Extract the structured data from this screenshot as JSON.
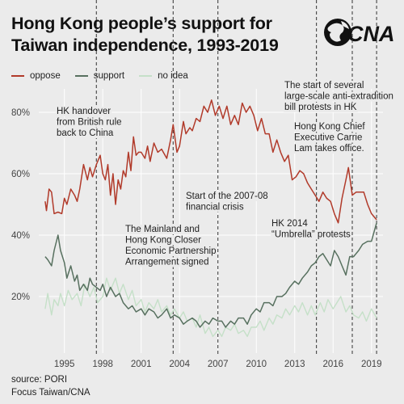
{
  "header": {
    "title_line1": "Hong Kong people’s support for",
    "title_line2": "Taiwan independence, 1993-2019",
    "logo_text": "CNA"
  },
  "footer": {
    "source": "source: PORI",
    "credit": "Focus Taiwan/CNA"
  },
  "colors": {
    "oppose": "#b13a2a",
    "support": "#57705f",
    "no_idea": "#c5e0c8",
    "background": "#ebebeb"
  },
  "chart_data": {
    "type": "line",
    "title": "Hong Kong people’s support for Taiwan independence, 1993-2019",
    "xlim": [
      1993.0,
      2019.9
    ],
    "ylim": [
      0,
      90
    ],
    "x_ticks": [
      1995,
      1998,
      2001,
      2004,
      2007,
      2010,
      2013,
      2016,
      2019
    ],
    "y_ticks": [
      20,
      40,
      60,
      80
    ],
    "y_tick_labels": [
      "20%",
      "40%",
      "60%",
      "80%"
    ],
    "legend_position": "top-left",
    "grid": true,
    "series": [
      {
        "name": "oppose",
        "color": "#b13a2a",
        "points": [
          [
            1993.5,
            51
          ],
          [
            1993.6,
            48
          ],
          [
            1993.8,
            55
          ],
          [
            1994.0,
            54
          ],
          [
            1994.2,
            47
          ],
          [
            1994.5,
            47.5
          ],
          [
            1994.8,
            47
          ],
          [
            1995.0,
            52
          ],
          [
            1995.2,
            50
          ],
          [
            1995.5,
            55
          ],
          [
            1995.8,
            53
          ],
          [
            1996.0,
            51
          ],
          [
            1996.2,
            55
          ],
          [
            1996.5,
            63
          ],
          [
            1996.8,
            58
          ],
          [
            1997.0,
            62
          ],
          [
            1997.2,
            59
          ],
          [
            1997.5,
            63
          ],
          [
            1997.8,
            66
          ],
          [
            1998.0,
            60
          ],
          [
            1998.2,
            58
          ],
          [
            1998.4,
            63
          ],
          [
            1998.6,
            53
          ],
          [
            1998.8,
            60
          ],
          [
            1999.0,
            50
          ],
          [
            1999.2,
            58
          ],
          [
            1999.4,
            55
          ],
          [
            1999.6,
            61
          ],
          [
            1999.8,
            59
          ],
          [
            2000.0,
            67
          ],
          [
            2000.2,
            61
          ],
          [
            2000.4,
            72
          ],
          [
            2000.6,
            66
          ],
          [
            2000.8,
            67
          ],
          [
            2001.0,
            67
          ],
          [
            2001.3,
            65
          ],
          [
            2001.5,
            69
          ],
          [
            2001.7,
            64
          ],
          [
            2002.0,
            70
          ],
          [
            2002.3,
            67
          ],
          [
            2002.6,
            68
          ],
          [
            2003.0,
            65
          ],
          [
            2003.3,
            71
          ],
          [
            2003.5,
            76
          ],
          [
            2003.8,
            67
          ],
          [
            2004.0,
            69
          ],
          [
            2004.3,
            77
          ],
          [
            2004.5,
            73
          ],
          [
            2004.8,
            75
          ],
          [
            2005.0,
            74
          ],
          [
            2005.3,
            78
          ],
          [
            2005.6,
            77
          ],
          [
            2005.9,
            82
          ],
          [
            2006.2,
            80
          ],
          [
            2006.5,
            84
          ],
          [
            2006.8,
            79
          ],
          [
            2007.1,
            82
          ],
          [
            2007.4,
            78
          ],
          [
            2007.7,
            82
          ],
          [
            2008.0,
            76
          ],
          [
            2008.3,
            79
          ],
          [
            2008.6,
            76
          ],
          [
            2008.9,
            83
          ],
          [
            2009.2,
            80
          ],
          [
            2009.5,
            82
          ],
          [
            2009.8,
            79
          ],
          [
            2010.1,
            74
          ],
          [
            2010.4,
            78
          ],
          [
            2010.7,
            73
          ],
          [
            2011.0,
            73
          ],
          [
            2011.3,
            67
          ],
          [
            2011.6,
            71
          ],
          [
            2011.9,
            67
          ],
          [
            2012.2,
            64
          ],
          [
            2012.5,
            66
          ],
          [
            2012.8,
            58
          ],
          [
            2013.1,
            59
          ],
          [
            2013.4,
            61
          ],
          [
            2013.7,
            60
          ],
          [
            2014.0,
            57
          ],
          [
            2014.3,
            55
          ],
          [
            2014.6,
            53
          ],
          [
            2014.9,
            51
          ],
          [
            2015.2,
            54
          ],
          [
            2015.5,
            52
          ],
          [
            2015.8,
            51
          ],
          [
            2016.1,
            47
          ],
          [
            2016.4,
            44
          ],
          [
            2016.7,
            52
          ],
          [
            2017.0,
            58
          ],
          [
            2017.2,
            62
          ],
          [
            2017.5,
            53
          ],
          [
            2017.8,
            54
          ],
          [
            2018.1,
            54
          ],
          [
            2018.4,
            54
          ],
          [
            2018.7,
            50
          ],
          [
            2019.0,
            47
          ],
          [
            2019.4,
            45
          ]
        ]
      },
      {
        "name": "support",
        "color": "#57705f",
        "points": [
          [
            1993.5,
            33
          ],
          [
            1993.7,
            32
          ],
          [
            1994.0,
            30
          ],
          [
            1994.2,
            35
          ],
          [
            1994.5,
            40
          ],
          [
            1994.7,
            35
          ],
          [
            1995.0,
            31
          ],
          [
            1995.2,
            26
          ],
          [
            1995.5,
            30
          ],
          [
            1995.8,
            25
          ],
          [
            1996.0,
            27
          ],
          [
            1996.2,
            22
          ],
          [
            1996.5,
            24
          ],
          [
            1996.8,
            22
          ],
          [
            1997.0,
            26
          ],
          [
            1997.2,
            24
          ],
          [
            1997.5,
            23
          ],
          [
            1997.8,
            22
          ],
          [
            1998.0,
            24
          ],
          [
            1998.3,
            20
          ],
          [
            1998.6,
            23
          ],
          [
            1999.0,
            20
          ],
          [
            1999.3,
            21
          ],
          [
            1999.6,
            18
          ],
          [
            2000.0,
            16
          ],
          [
            2000.3,
            17
          ],
          [
            2000.6,
            15
          ],
          [
            2001.0,
            16
          ],
          [
            2001.3,
            14
          ],
          [
            2001.6,
            16
          ],
          [
            2002.0,
            15
          ],
          [
            2002.3,
            13
          ],
          [
            2002.6,
            14
          ],
          [
            2003.0,
            16
          ],
          [
            2003.3,
            13
          ],
          [
            2003.6,
            14
          ],
          [
            2004.0,
            13
          ],
          [
            2004.3,
            11
          ],
          [
            2004.6,
            12
          ],
          [
            2005.0,
            13
          ],
          [
            2005.3,
            12
          ],
          [
            2005.6,
            10
          ],
          [
            2006.0,
            12
          ],
          [
            2006.3,
            11
          ],
          [
            2006.6,
            13
          ],
          [
            2007.0,
            12
          ],
          [
            2007.3,
            12
          ],
          [
            2007.6,
            10
          ],
          [
            2008.0,
            12
          ],
          [
            2008.3,
            11
          ],
          [
            2008.6,
            13
          ],
          [
            2009.0,
            13
          ],
          [
            2009.3,
            11
          ],
          [
            2009.6,
            14
          ],
          [
            2010.0,
            16
          ],
          [
            2010.3,
            15
          ],
          [
            2010.6,
            18
          ],
          [
            2011.0,
            18
          ],
          [
            2011.3,
            17
          ],
          [
            2011.6,
            20
          ],
          [
            2012.0,
            20
          ],
          [
            2012.3,
            21
          ],
          [
            2012.6,
            23
          ],
          [
            2013.0,
            25
          ],
          [
            2013.3,
            24
          ],
          [
            2013.6,
            26
          ],
          [
            2014.0,
            28
          ],
          [
            2014.3,
            30
          ],
          [
            2014.6,
            31
          ],
          [
            2014.9,
            33
          ],
          [
            2015.2,
            34
          ],
          [
            2015.5,
            32
          ],
          [
            2015.8,
            30
          ],
          [
            2016.1,
            35
          ],
          [
            2016.4,
            33
          ],
          [
            2016.7,
            30
          ],
          [
            2017.0,
            27
          ],
          [
            2017.3,
            33
          ],
          [
            2017.6,
            33
          ],
          [
            2018.0,
            35
          ],
          [
            2018.3,
            37
          ],
          [
            2018.7,
            38
          ],
          [
            2019.0,
            38
          ],
          [
            2019.4,
            44
          ]
        ]
      },
      {
        "name": "no idea",
        "color": "#c5e0c8",
        "points": [
          [
            1993.5,
            16
          ],
          [
            1993.7,
            21
          ],
          [
            1994.0,
            14
          ],
          [
            1994.2,
            19
          ],
          [
            1994.5,
            17
          ],
          [
            1994.7,
            21
          ],
          [
            1995.0,
            17
          ],
          [
            1995.3,
            22
          ],
          [
            1995.6,
            19
          ],
          [
            1996.0,
            21
          ],
          [
            1996.3,
            17
          ],
          [
            1996.6,
            24
          ],
          [
            1997.0,
            20
          ],
          [
            1997.3,
            23
          ],
          [
            1997.6,
            18
          ],
          [
            1998.0,
            20
          ],
          [
            1998.3,
            26
          ],
          [
            1998.6,
            22
          ],
          [
            1999.0,
            26
          ],
          [
            1999.3,
            21
          ],
          [
            1999.6,
            24
          ],
          [
            2000.0,
            19
          ],
          [
            2000.3,
            22
          ],
          [
            2000.6,
            17
          ],
          [
            2001.0,
            19
          ],
          [
            2001.3,
            15
          ],
          [
            2001.6,
            18
          ],
          [
            2002.0,
            16
          ],
          [
            2002.3,
            19
          ],
          [
            2002.6,
            15
          ],
          [
            2003.0,
            17
          ],
          [
            2003.3,
            14
          ],
          [
            2003.6,
            16
          ],
          [
            2004.0,
            13
          ],
          [
            2004.3,
            15
          ],
          [
            2004.6,
            12
          ],
          [
            2005.0,
            13
          ],
          [
            2005.3,
            10
          ],
          [
            2005.6,
            14
          ],
          [
            2006.0,
            8
          ],
          [
            2006.3,
            10
          ],
          [
            2006.6,
            7
          ],
          [
            2007.0,
            9
          ],
          [
            2007.3,
            7
          ],
          [
            2007.6,
            10
          ],
          [
            2008.0,
            9
          ],
          [
            2008.3,
            11
          ],
          [
            2008.6,
            8
          ],
          [
            2009.0,
            9
          ],
          [
            2009.3,
            7
          ],
          [
            2009.6,
            10
          ],
          [
            2010.0,
            10
          ],
          [
            2010.3,
            12
          ],
          [
            2010.6,
            9
          ],
          [
            2011.0,
            13
          ],
          [
            2011.3,
            11
          ],
          [
            2011.6,
            14
          ],
          [
            2012.0,
            13
          ],
          [
            2012.3,
            16
          ],
          [
            2012.6,
            14
          ],
          [
            2013.0,
            17
          ],
          [
            2013.3,
            15
          ],
          [
            2013.6,
            18
          ],
          [
            2014.0,
            14
          ],
          [
            2014.3,
            17
          ],
          [
            2014.6,
            14
          ],
          [
            2015.0,
            18
          ],
          [
            2015.3,
            15
          ],
          [
            2015.6,
            19
          ],
          [
            2016.0,
            16
          ],
          [
            2016.3,
            18
          ],
          [
            2016.6,
            20
          ],
          [
            2017.0,
            15
          ],
          [
            2017.3,
            17
          ],
          [
            2017.6,
            14
          ],
          [
            2018.0,
            13
          ],
          [
            2018.3,
            15
          ],
          [
            2018.6,
            12
          ],
          [
            2019.0,
            16
          ],
          [
            2019.4,
            13
          ]
        ]
      }
    ],
    "events": [
      {
        "x": 1997.5,
        "label_lines": [
          "HK handover",
          "from British rule",
          "back to China"
        ]
      },
      {
        "x": 2003.5,
        "label_lines": [
          "The Mainland and",
          "Hong Kong Closer",
          "Economic Partnership",
          "Arrangement signed"
        ]
      },
      {
        "x": 2007.0,
        "label_lines": [
          "Start of the 2007-08",
          "financial crisis"
        ]
      },
      {
        "x": 2014.7,
        "label_lines": [
          "HK 2014",
          "“Umbrella” protests"
        ]
      },
      {
        "x": 2017.5,
        "label_lines": [
          "Hong Kong Chief",
          "Executive Carrie",
          "Lam takes office."
        ]
      },
      {
        "x": 2019.4,
        "label_lines": [
          "The start of several",
          "large-scale anti-extradition",
          "bill protests in HK"
        ]
      }
    ]
  }
}
